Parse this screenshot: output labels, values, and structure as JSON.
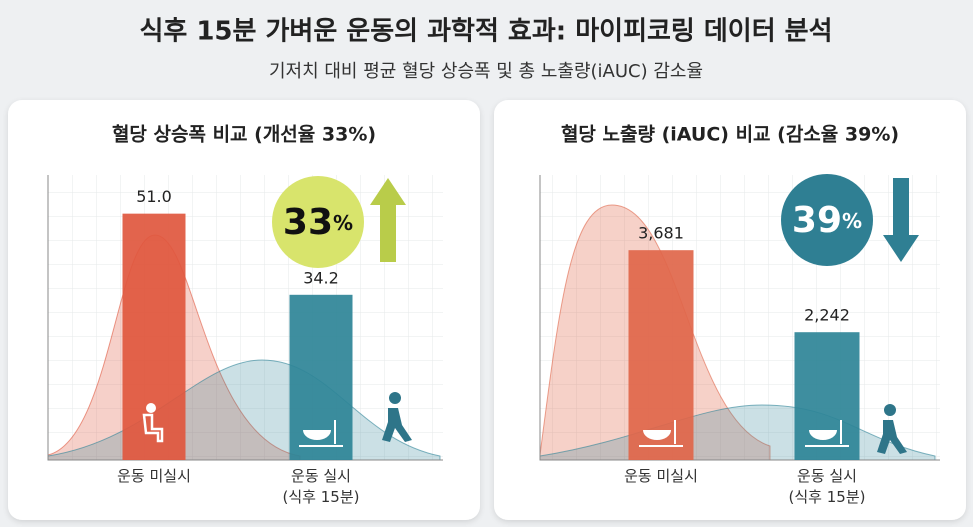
{
  "title": "식후 15분 가벼운 운동의 과학적 효과: 마이피코링 데이터 분석",
  "subtitle": "기저치 대비 평균 혈당 상승폭 및 총 노출량(iAUC) 감소율",
  "chart_data": [
    {
      "type": "bar",
      "title": "혈당 상승폭 비교 (개선율 33%)",
      "categories": [
        "운동 미실시",
        "운동 실시\n(식후 15분)"
      ],
      "values": [
        51.0,
        34.2
      ],
      "value_labels": [
        "51.0",
        "34.2"
      ],
      "colors": [
        "#e0573e",
        "#2e8497"
      ],
      "ylim": [
        0,
        59
      ],
      "change": 33,
      "change_unit": "%",
      "change_direction": "up",
      "badge_color": "#d8e46c"
    },
    {
      "type": "bar",
      "title": "혈당 노출량 (iAUC) 비교 (감소율 39%)",
      "categories": [
        "운동 미실시",
        "운동 실시\n(식후 15분)"
      ],
      "values": [
        3681,
        2242
      ],
      "value_labels": [
        "3,681",
        "2,242"
      ],
      "colors": [
        "#e0664a",
        "#2e8497"
      ],
      "ylim": [
        0,
        5000
      ],
      "change": 39,
      "change_unit": "%",
      "change_direction": "down",
      "badge_color": "#2f7f93"
    }
  ]
}
